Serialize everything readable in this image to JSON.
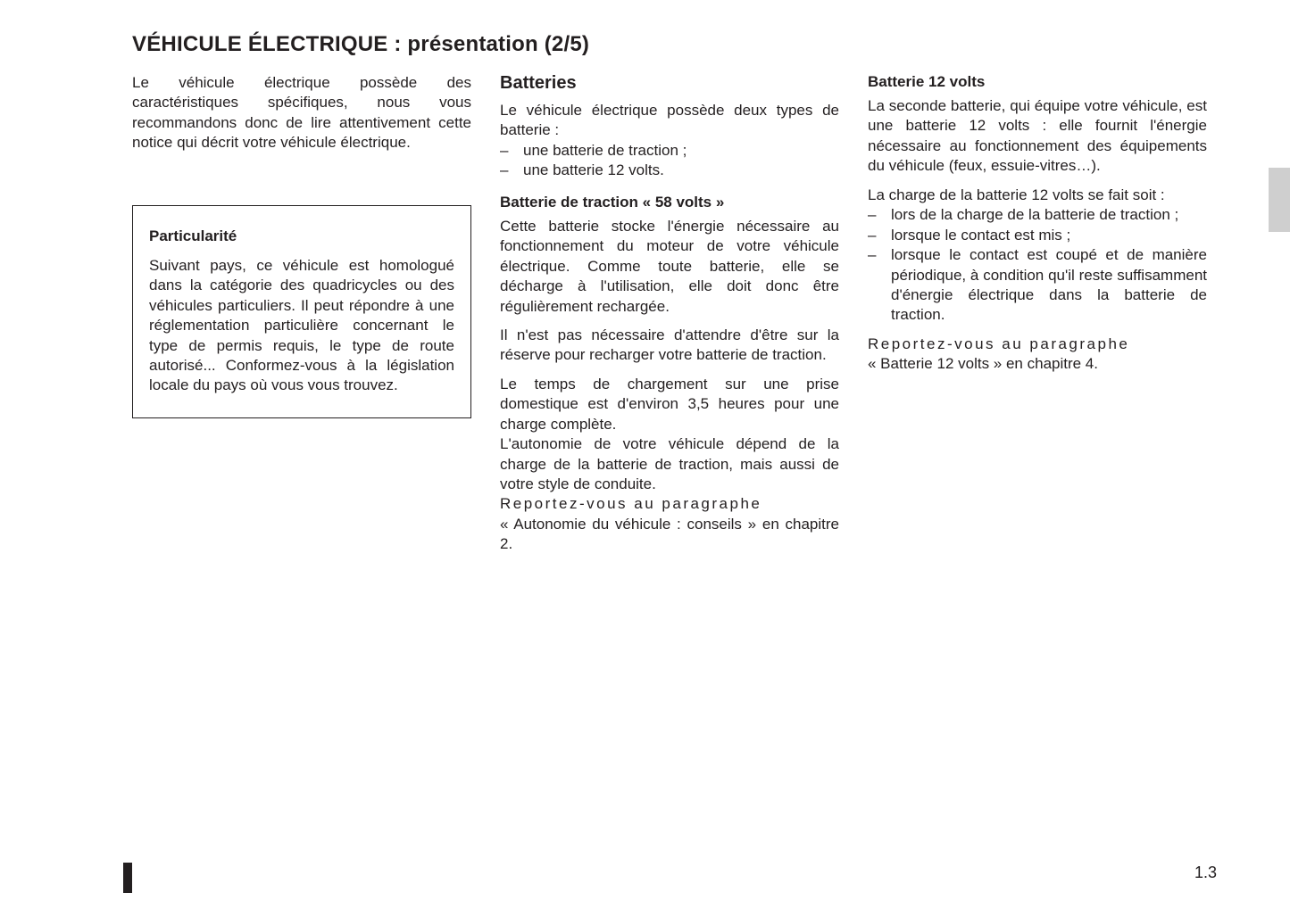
{
  "title": "VÉHICULE ÉLECTRIQUE : présentation (2/5)",
  "page_number": "1.3",
  "col1": {
    "intro": "Le véhicule électrique possède des caractéristiques spécifiques, nous vous recommandons donc de lire attentivement cette notice qui décrit votre véhicule électrique.",
    "box_title": "Particularité",
    "box_text": "Suivant pays, ce véhicule est homologué dans la catégorie des quadricycles ou des véhicules particuliers. Il peut répondre à une réglementation particulière concernant le type de permis requis, le type de route autorisé... Conformez-vous à la législation locale du pays où vous vous trouvez."
  },
  "col2": {
    "h2": "Batteries",
    "p1": "Le véhicule électrique possède deux types de batterie :",
    "list1": [
      "une batterie de traction ;",
      "une batterie 12 volts."
    ],
    "h3": "Batterie de traction « 58 volts »",
    "p2": "Cette batterie stocke l'énergie nécessaire au fonctionnement du moteur de votre véhicule électrique. Comme toute batterie, elle se décharge à l'utilisation, elle doit donc être régulièrement rechargée.",
    "p3": "Il n'est pas nécessaire d'attendre d'être sur la réserve pour recharger votre batterie de traction.",
    "p4a": "Le temps de chargement sur une prise domestique est d'environ 3,5 heures pour une charge complète.",
    "p4b": "L'autonomie de votre véhicule dépend de la charge de la batterie de traction, mais aussi de votre style de conduite.",
    "p4c_spaced": "Reportez-vous au paragraphe",
    "p4d": "« Autonomie du véhicule : conseils » en chapitre 2."
  },
  "col3": {
    "h3": "Batterie 12 volts",
    "p1": "La seconde batterie, qui équipe votre véhicule, est une batterie 12 volts : elle fournit l'énergie nécessaire au fonctionnement des équipements du véhicule (feux, essuie-vitres…).",
    "p2": "La charge de la batterie 12 volts se fait soit :",
    "list1": [
      "lors de la charge de la batterie de traction ;",
      "lorsque le contact est mis ;",
      "lorsque le contact est coupé et de manière périodique, à condition qu'il reste suffisamment d'énergie électrique dans la batterie de traction."
    ],
    "p3_spaced": "Reportez-vous au paragraphe",
    "p3b": "« Batterie 12 volts » en chapitre 4."
  }
}
